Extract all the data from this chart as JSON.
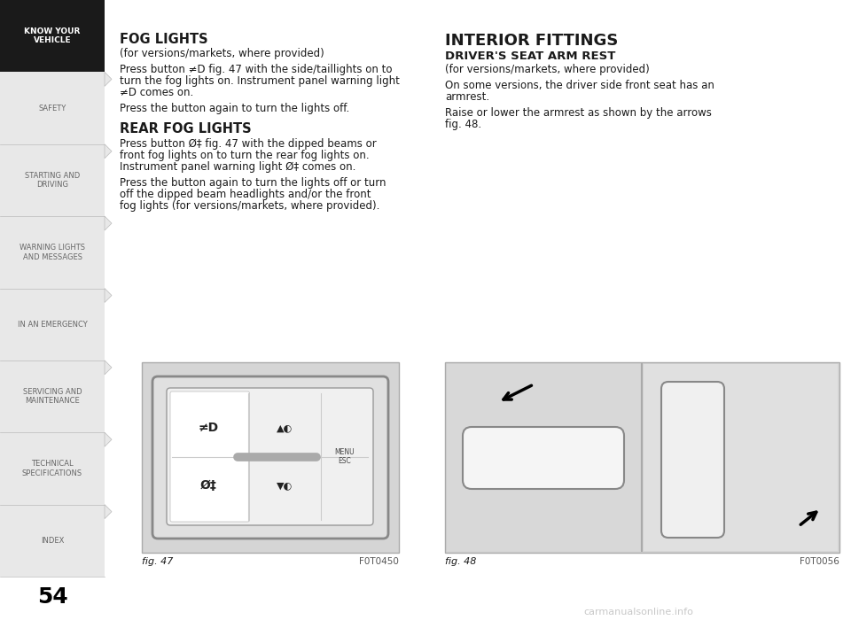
{
  "bg_color": "#ffffff",
  "sidebar_active_bg": "#1a1a1a",
  "sidebar_active_text": "#ffffff",
  "sidebar_text": "#666666",
  "sidebar_items": [
    {
      "label": "KNOW YOUR\nVEHICLE",
      "active": true
    },
    {
      "label": "SAFETY",
      "active": false
    },
    {
      "label": "STARTING AND\nDRIVING",
      "active": false
    },
    {
      "label": "WARNING LIGHTS\nAND MESSAGES",
      "active": false
    },
    {
      "label": "IN AN EMERGENCY",
      "active": false
    },
    {
      "label": "SERVICING AND\nMAINTENANCE",
      "active": false
    },
    {
      "label": "TECHNICAL\nSPECIFICATIONS",
      "active": false
    },
    {
      "label": "INDEX",
      "active": false
    }
  ],
  "page_number": "54",
  "left_title": "FOG LIGHTS",
  "left_subtitle": "(for versions/markets, where provided)",
  "left_para1_line1": "Press button ≠D fig. 47 with the side/taillights on to",
  "left_para1_line2": "turn the fog lights on. Instrument panel warning light",
  "left_para1_line3": "≠D comes on.",
  "left_para2": "Press the button again to turn the lights off.",
  "left_section2_title": "REAR FOG LIGHTS",
  "left_section2_para1_line1": "Press button Ø‡ fig. 47 with the dipped beams or",
  "left_section2_para1_line2": "front fog lights on to turn the rear fog lights on.",
  "left_section2_para1_line3": "Instrument panel warning light Ø‡ comes on.",
  "left_section2_para2_line1": "Press the button again to turn the lights off or turn",
  "left_section2_para2_line2": "off the dipped beam headlights and/or the front",
  "left_section2_para2_line3": "fog lights (for versions/markets, where provided).",
  "right_title": "INTERIOR FITTINGS",
  "right_section1_title": "DRIVER'S SEAT ARM REST",
  "right_section1_subtitle": "(for versions/markets, where provided)",
  "right_section1_para1_line1": "On some versions, the driver side front seat has an",
  "right_section1_para1_line2": "armrest.",
  "right_section1_para2_line1": "Raise or lower the armrest as shown by the arrows",
  "right_section1_para2_line2": "fig. 48.",
  "fig47_label": "fig. 47",
  "fig47_code": "F0T0450",
  "fig48_label": "fig. 48",
  "fig48_code": "F0T0056",
  "watermark": "carmanualsonline.info",
  "text_color": "#1a1a1a",
  "light_gray": "#e8e8e8",
  "mid_gray": "#c8c8c8",
  "dark_gray": "#888888"
}
